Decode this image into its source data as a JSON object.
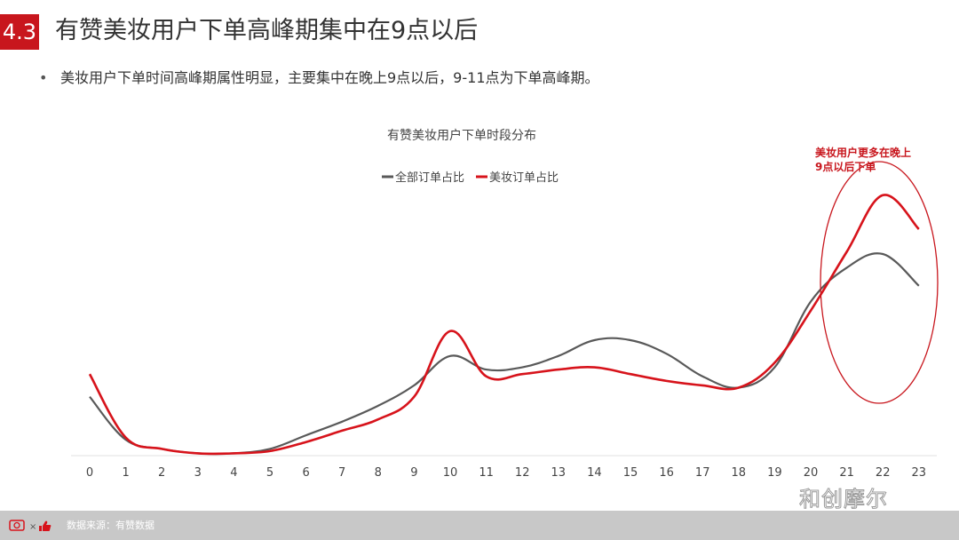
{
  "header": {
    "section_number": "4.3",
    "title": "有赞美妆用户下单高峰期集中在9点以后"
  },
  "bullet": {
    "marker": "•",
    "text": "美妆用户下单时间高峰期属性明显，主要集中在晚上9点以后，9-11点为下单高峰期。"
  },
  "colors": {
    "accent": "#c8161d",
    "series_all": "#595959",
    "series_beauty": "#d7131b"
  },
  "chart_data": {
    "type": "line",
    "title": "有赞美妆用户下单时段分布",
    "x": [
      0,
      1,
      2,
      3,
      4,
      5,
      6,
      7,
      8,
      9,
      10,
      11,
      12,
      13,
      14,
      15,
      16,
      17,
      18,
      19,
      20,
      21,
      22,
      23
    ],
    "series": [
      {
        "name": "全部订单占比",
        "values": [
          2.6,
          0.7,
          0.3,
          0.1,
          0.1,
          0.3,
          0.9,
          1.5,
          2.2,
          3.1,
          4.4,
          3.8,
          3.9,
          4.4,
          5.1,
          5.1,
          4.5,
          3.5,
          3.0,
          3.9,
          6.8,
          8.3,
          8.9,
          7.5
        ]
      },
      {
        "name": "美妆订单占比",
        "values": [
          3.6,
          0.8,
          0.3,
          0.1,
          0.1,
          0.2,
          0.6,
          1.1,
          1.6,
          2.6,
          5.5,
          3.5,
          3.6,
          3.8,
          3.9,
          3.6,
          3.3,
          3.1,
          3.0,
          4.1,
          6.4,
          9.0,
          11.5,
          10.0
        ]
      }
    ],
    "legend_position": "top-center",
    "annotation": {
      "text_line1": "美妆用户更多在晚上",
      "text_line2": "9点以后下单"
    }
  },
  "footer": {
    "source": "数据来源：有赞数据",
    "watermark": "和创摩尔"
  }
}
